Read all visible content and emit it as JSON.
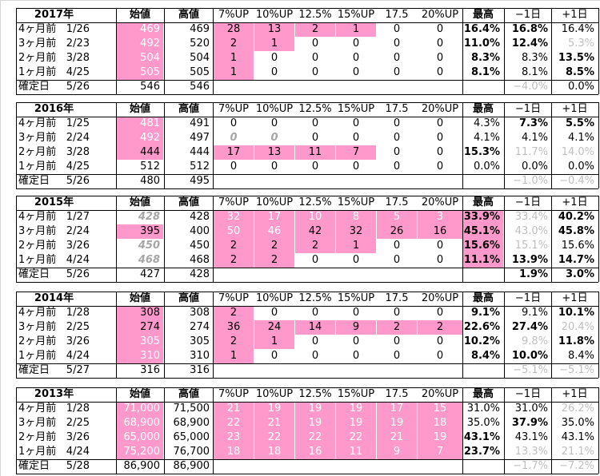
{
  "headers": [
    "始値",
    "高値",
    "7%UP",
    "10%UP",
    "12.5%",
    "15%UP",
    "17.5",
    "20%UP",
    "最高",
    "−1日",
    "+1日"
  ],
  "blocks": [
    {
      "year": "2017年",
      "rows": [
        {
          "label": "4ヶ月前",
          "date": "1/26",
          "open": "469",
          "high": "469",
          "p7": "28",
          "p10": "13",
          "p125": "2",
          "p15": "1",
          "p175": "0",
          "p20": "0",
          "max": "16.4%",
          "m1": "16.8%",
          "p1": "16.4%"
        },
        {
          "label": "3ヶ月前",
          "date": "2/23",
          "open": "492",
          "high": "520",
          "p7": "2",
          "p10": "1",
          "p125": "0",
          "p15": "0",
          "p175": "0",
          "p20": "0",
          "max": "11.0%",
          "m1": "12.4%",
          "p1": "5.3%"
        },
        {
          "label": "2ヶ月前",
          "date": "3/28",
          "open": "504",
          "high": "504",
          "p7": "1",
          "p10": "0",
          "p125": "0",
          "p15": "0",
          "p175": "0",
          "p20": "0",
          "max": "8.3%",
          "m1": "8.3%",
          "p1": "13.5%"
        },
        {
          "label": "1ヶ月前",
          "date": "4/25",
          "open": "505",
          "high": "505",
          "p7": "1",
          "p10": "0",
          "p125": "0",
          "p15": "0",
          "p175": "0",
          "p20": "0",
          "max": "8.1%",
          "m1": "8.1%",
          "p1": "8.5%"
        }
      ],
      "final": {
        "label": "確定日",
        "date": "5/26",
        "open": "546",
        "high": "546",
        "m1": "−4.0%",
        "p1": "0.0%"
      }
    },
    {
      "year": "2016年",
      "rows": [
        {
          "label": "4ヶ月前",
          "date": "1/25",
          "open": "481",
          "high": "491",
          "p7": "0",
          "p10": "0",
          "p125": "0",
          "p15": "0",
          "p175": "0",
          "p20": "0",
          "max": "4.3%",
          "m1": "7.3%",
          "p1": "5.5%"
        },
        {
          "label": "3ヶ月前",
          "date": "2/24",
          "open": "492",
          "high": "497",
          "p7": "0",
          "p10": "0",
          "p125": "0",
          "p15": "0",
          "p175": "0",
          "p20": "0",
          "max": "4.1%",
          "m1": "4.1%",
          "p1": "4.1%"
        },
        {
          "label": "2ヶ月前",
          "date": "3/28",
          "open": "444",
          "high": "444",
          "p7": "17",
          "p10": "13",
          "p125": "11",
          "p15": "7",
          "p175": "0",
          "p20": "0",
          "max": "15.3%",
          "m1": "11.7%",
          "p1": "14.0%"
        },
        {
          "label": "1ヶ月前",
          "date": "4/25",
          "open": "512",
          "high": "512",
          "p7": "0",
          "p10": "0",
          "p125": "0",
          "p15": "0",
          "p175": "0",
          "p20": "0",
          "max": "0.0%",
          "m1": "0.0%",
          "p1": "0.0%"
        }
      ],
      "final": {
        "label": "確定日",
        "date": "5/26",
        "open": "480",
        "high": "495",
        "m1": "−1.0%",
        "p1": "−0.4%"
      }
    },
    {
      "year": "2015年",
      "rows": [
        {
          "label": "4ヶ月前",
          "date": "1/27",
          "open": "428",
          "high": "428",
          "p7": "32",
          "p10": "17",
          "p125": "10",
          "p15": "8",
          "p175": "5",
          "p20": "3",
          "max": "33.9%",
          "m1": "33.4%",
          "p1": "40.2%"
        },
        {
          "label": "3ヶ月前",
          "date": "2/24",
          "open": "395",
          "high": "400",
          "p7": "50",
          "p10": "46",
          "p125": "42",
          "p15": "32",
          "p175": "26",
          "p20": "16",
          "max": "45.1%",
          "m1": "43.0%",
          "p1": "45.8%"
        },
        {
          "label": "2ヶ月前",
          "date": "3/26",
          "open": "450",
          "high": "450",
          "p7": "2",
          "p10": "2",
          "p125": "2",
          "p15": "1",
          "p175": "0",
          "p20": "0",
          "max": "15.6%",
          "m1": "15.1%",
          "p1": "15.6%"
        },
        {
          "label": "1ヶ月前",
          "date": "4/24",
          "open": "468",
          "high": "468",
          "p7": "2",
          "p10": "2",
          "p125": "0",
          "p15": "0",
          "p175": "0",
          "p20": "0",
          "max": "11.1%",
          "m1": "13.9%",
          "p1": "14.7%"
        }
      ],
      "final": {
        "label": "確定日",
        "date": "5/26",
        "open": "427",
        "high": "428",
        "m1": "1.9%",
        "p1": "3.0%"
      }
    },
    {
      "year": "2014年",
      "rows": [
        {
          "label": "4ヶ月前",
          "date": "1/28",
          "open": "308",
          "high": "308",
          "p7": "2",
          "p10": "0",
          "p125": "0",
          "p15": "0",
          "p175": "0",
          "p20": "0",
          "max": "9.1%",
          "m1": "9.1%",
          "p1": "10.1%"
        },
        {
          "label": "3ヶ月前",
          "date": "2/25",
          "open": "274",
          "high": "274",
          "p7": "36",
          "p10": "24",
          "p125": "14",
          "p15": "9",
          "p175": "2",
          "p20": "2",
          "max": "22.6%",
          "m1": "27.4%",
          "p1": "20.4%"
        },
        {
          "label": "2ヶ月前",
          "date": "3/26",
          "open": "305",
          "high": "305",
          "p7": "2",
          "p10": "1",
          "p125": "0",
          "p15": "0",
          "p175": "0",
          "p20": "0",
          "max": "10.2%",
          "m1": "9.8%",
          "p1": "11.8%"
        },
        {
          "label": "1ヶ月前",
          "date": "4/24",
          "open": "310",
          "high": "310",
          "p7": "1",
          "p10": "0",
          "p125": "0",
          "p15": "0",
          "p175": "0",
          "p20": "0",
          "max": "8.4%",
          "m1": "10.0%",
          "p1": "8.4%"
        }
      ],
      "final": {
        "label": "確定日",
        "date": "5/27",
        "open": "316",
        "high": "316",
        "m1": "−5.1%",
        "p1": "−5.1%"
      }
    },
    {
      "year": "2013年",
      "rows": [
        {
          "label": "4ヶ月前",
          "date": "1/28",
          "open": "71,000",
          "high": "71,500",
          "p7": "21",
          "p10": "19",
          "p125": "19",
          "p15": "19",
          "p175": "17",
          "p20": "15",
          "max": "31.0%",
          "m1": "31.0%",
          "p1": "26.2%"
        },
        {
          "label": "3ヶ月前",
          "date": "2/25",
          "open": "68,900",
          "high": "68,900",
          "p7": "22",
          "p10": "21",
          "p125": "19",
          "p15": "19",
          "p175": "19",
          "p20": "18",
          "max": "35.0%",
          "m1": "37.9%",
          "p1": "35.0%"
        },
        {
          "label": "2ヶ月前",
          "date": "3/26",
          "open": "65,000",
          "high": "65,000",
          "p7": "23",
          "p10": "22",
          "p125": "22",
          "p15": "22",
          "p175": "21",
          "p20": "19",
          "max": "43.1%",
          "m1": "43.1%",
          "p1": "43.1%"
        },
        {
          "label": "1ヶ月前",
          "date": "4/24",
          "open": "75,200",
          "high": "76,700",
          "p7": "18",
          "p10": "18",
          "p125": "16",
          "p15": "11",
          "p175": "9",
          "p20": "7",
          "max": "23.7%",
          "m1": "13.3%",
          "p1": "21.1%"
        }
      ],
      "final": {
        "label": "確定日",
        "date": "5/28",
        "open": "86,900",
        "high": "86,900",
        "m1": "−1.7%",
        "p1": "−7.2%"
      }
    }
  ]
}
